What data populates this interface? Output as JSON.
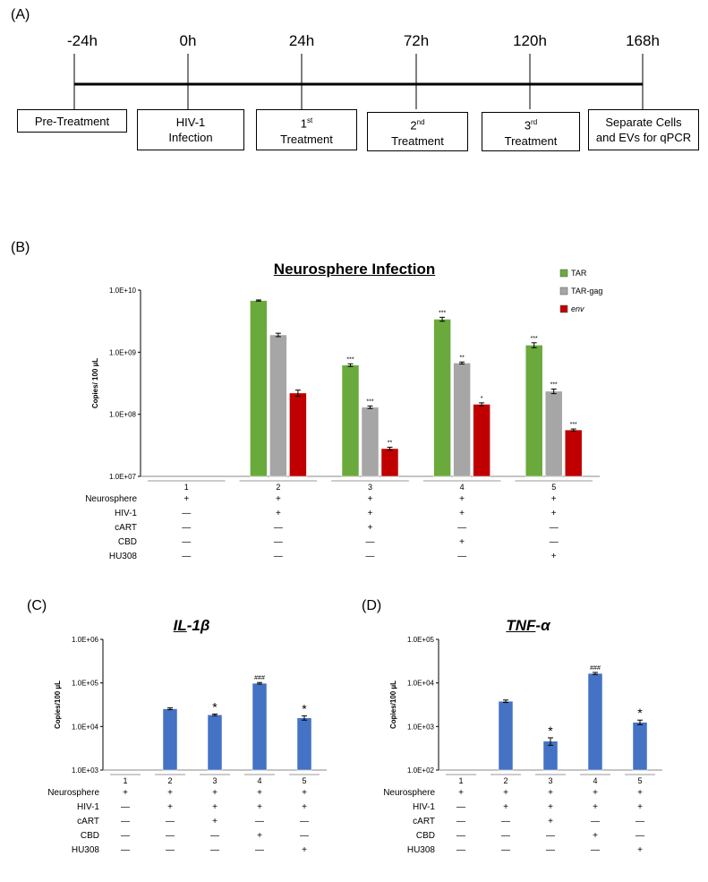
{
  "panels": {
    "a": "(A)",
    "b": "(B)",
    "c": "(C)",
    "d": "(D)"
  },
  "timeline": {
    "times": [
      "-24h",
      "0h",
      "24h",
      "72h",
      "120h",
      "168h"
    ],
    "steps": [
      {
        "line1": "Pre-Treatment",
        "line2": ""
      },
      {
        "line1": "HIV-1",
        "line2": "Infection"
      },
      {
        "line1": "1",
        "sup": "st",
        "line2": "Treatment"
      },
      {
        "line1": "2",
        "sup": "nd",
        "line2": "Treatment"
      },
      {
        "line1": "3",
        "sup": "rd",
        "line2": "Treatment"
      },
      {
        "line1": "Separate Cells",
        "line2": "and EVs for qPCR"
      }
    ]
  },
  "conditions": {
    "rows": [
      "Neurosphere",
      "HIV-1",
      "cART",
      "CBD",
      "HU308"
    ],
    "matrix": [
      [
        "+",
        "—",
        "—",
        "—",
        "—"
      ],
      [
        "+",
        "+",
        "—",
        "—",
        "—"
      ],
      [
        "+",
        "+",
        "+",
        "—",
        "—"
      ],
      [
        "+",
        "+",
        "—",
        "+",
        "—"
      ],
      [
        "+",
        "+",
        "—",
        "—",
        "+"
      ]
    ]
  },
  "chart_data": [
    {
      "type": "bar",
      "title": "Neurosphere Infection",
      "ylabel": "Copies/ 100 µL",
      "yscale": "log",
      "ylim": [
        10000000,
        10000000000
      ],
      "yticks": [
        "1.0E+07",
        "1.0E+08",
        "1.0E+09",
        "1.0E+10"
      ],
      "categories": [
        "1",
        "2",
        "3",
        "4",
        "5"
      ],
      "legend": "top-right",
      "series": [
        {
          "name": "TAR",
          "color": "#6aaa3c",
          "values": [
            null,
            6800000000,
            620000000,
            3400000000,
            1300000000
          ],
          "errors": [
            0,
            150000000,
            30000000,
            250000000,
            120000000
          ],
          "sig": [
            "",
            "",
            "***",
            "***",
            "***"
          ]
        },
        {
          "name": "TAR-gag",
          "color": "#a6a6a6",
          "values": [
            null,
            1900000000,
            130000000,
            670000000,
            235000000
          ],
          "errors": [
            0,
            120000000,
            6000000,
            25000000,
            20000000
          ],
          "sig": [
            "",
            "",
            "***",
            "**",
            "***"
          ]
        },
        {
          "name": "env",
          "color": "#c00000",
          "values": [
            null,
            220000000,
            28000000,
            145000000,
            56000000
          ],
          "errors": [
            0,
            25000000,
            1500000,
            8000000,
            2000000
          ],
          "sig": [
            "",
            "",
            "**",
            "*",
            "***"
          ]
        }
      ]
    },
    {
      "type": "bar",
      "title_gene": "IL",
      "title_rest": "-1β",
      "ylabel": "Copies/100 µL",
      "yscale": "log",
      "ylim": [
        1000,
        1000000
      ],
      "yticks": [
        "1.0E+03",
        "1.0E+04",
        "1.0E+05",
        "1.0E+06"
      ],
      "categories": [
        "1",
        "2",
        "3",
        "4",
        "5"
      ],
      "series": [
        {
          "color": "#4472c4",
          "values": [
            null,
            25500,
            18500,
            98000,
            15800
          ],
          "errors": [
            0,
            1200,
            800,
            4000,
            1800
          ],
          "sig": [
            "",
            "",
            "*",
            "###",
            "*"
          ]
        }
      ]
    },
    {
      "type": "bar",
      "title_gene": "TNF",
      "title_rest": "-α",
      "ylabel": "Copies/100 µL",
      "yscale": "log",
      "ylim": [
        100,
        100000
      ],
      "yticks": [
        "1.0E+02",
        "1.0E+03",
        "1.0E+04",
        "1.0E+05"
      ],
      "categories": [
        "1",
        "2",
        "3",
        "4",
        "5"
      ],
      "series": [
        {
          "color": "#4472c4",
          "values": [
            null,
            3800,
            460,
            16500,
            1250
          ],
          "errors": [
            0,
            250,
            90,
            900,
            150
          ],
          "sig": [
            "",
            "",
            "*",
            "###",
            "*"
          ]
        }
      ]
    }
  ]
}
